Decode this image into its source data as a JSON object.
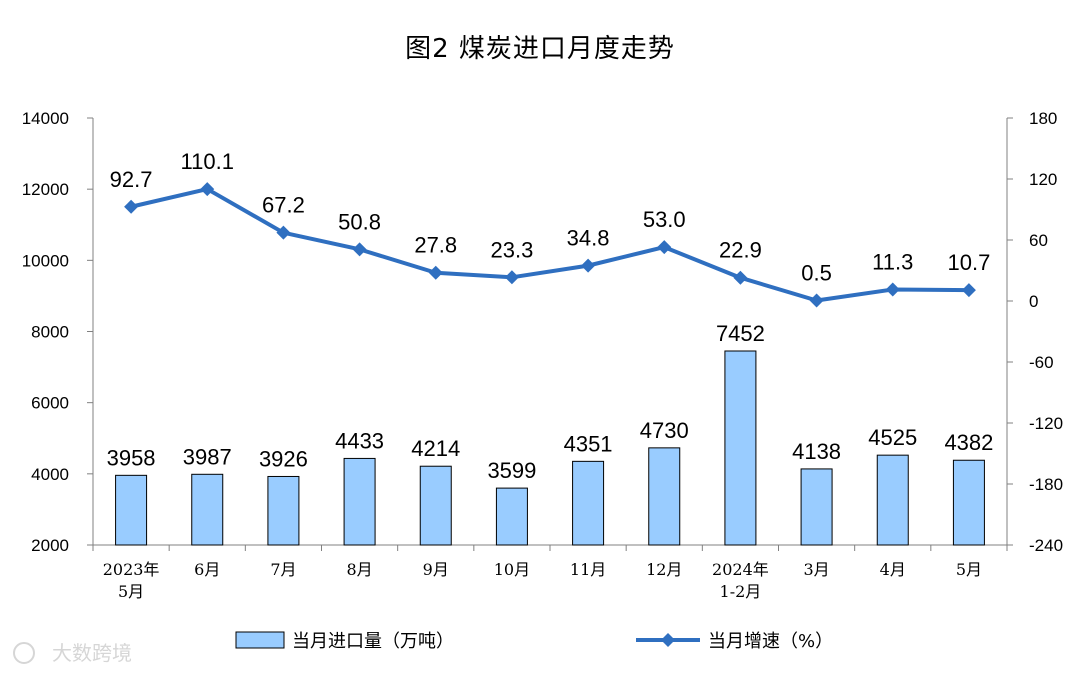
{
  "chart_data": {
    "type": "bar+line",
    "title": "图2 煤炭进口月度走势",
    "categories": [
      [
        "2023年",
        "5月"
      ],
      [
        "6月"
      ],
      [
        "7月"
      ],
      [
        "8月"
      ],
      [
        "9月"
      ],
      [
        "10月"
      ],
      [
        "11月"
      ],
      [
        "12月"
      ],
      [
        "2024年",
        "1-2月"
      ],
      [
        "3月"
      ],
      [
        "4月"
      ],
      [
        "5月"
      ]
    ],
    "series": [
      {
        "name": "当月进口量（万吨）",
        "type": "bar",
        "axis": "left",
        "values": [
          3958,
          3987,
          3926,
          4433,
          4214,
          3599,
          4351,
          4730,
          7452,
          4138,
          4525,
          4382
        ],
        "labels": [
          "3958",
          "3987",
          "3926",
          "4433",
          "4214",
          "3599",
          "4351",
          "4730",
          "7452",
          "4138",
          "4525",
          "4382"
        ]
      },
      {
        "name": "当月增速（%）",
        "type": "line",
        "axis": "right",
        "values": [
          92.7,
          110.1,
          67.2,
          50.8,
          27.8,
          23.3,
          34.8,
          53.0,
          22.9,
          0.5,
          11.3,
          10.7
        ],
        "labels": [
          "92.7",
          "110.1",
          "67.2",
          "50.8",
          "27.8",
          "23.3",
          "34.8",
          "53.0",
          "22.9",
          "0.5",
          "11.3",
          "10.7"
        ]
      }
    ],
    "left_axis": {
      "min": 2000,
      "max": 14000,
      "ticks": [
        "2000",
        "4000",
        "6000",
        "8000",
        "10000",
        "12000",
        "14000"
      ]
    },
    "right_axis": {
      "min": -240,
      "max": 180,
      "ticks": [
        "-240",
        "-180",
        "-120",
        "-60",
        "0",
        "60",
        "120",
        "180"
      ]
    },
    "legend_position": "bottom",
    "grid": false,
    "colors": {
      "bar_fill": "#99ccff",
      "bar_stroke": "#000000",
      "line": "#2f6fc0",
      "axis": "#808080"
    }
  },
  "watermark": {
    "text": "大数跨境"
  }
}
